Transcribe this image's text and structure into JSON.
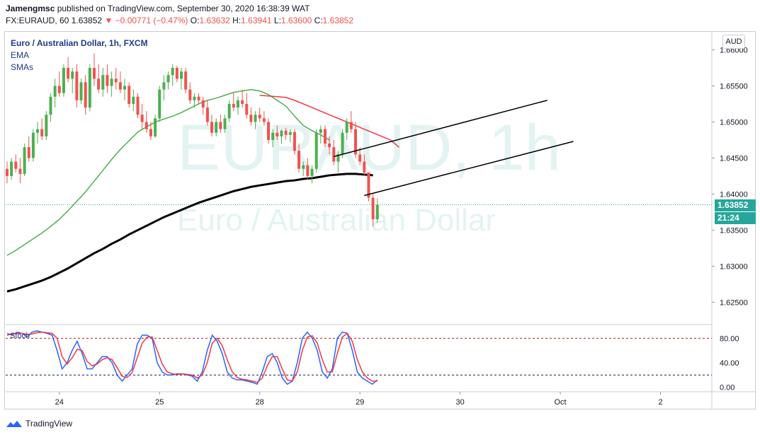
{
  "header": {
    "line1_user": "Jamengmsc",
    "line1_rest": " published on TradingView.com, September 30, 2020 16:38:39 WAT",
    "symbol": "FX:EURAUD, 60",
    "last": "1.63852",
    "change_arrow": "▼",
    "change": "−0.00771 (−0.47%)",
    "o_label": "O:",
    "o_value": "1.63632",
    "h_label": "H:",
    "h_value": "1.63941",
    "l_label": "L:",
    "l_value": "1.63600",
    "c_label": "C:",
    "c_value": "1.63852"
  },
  "legend": {
    "title": "Euro / Australian Dollar, 1h, FXCM",
    "ema": "EMA",
    "smas": "SMAs",
    "stoch": "Stoch"
  },
  "watermark": {
    "symbol": "EURAUD, 1h",
    "name": "Euro / Australian Dollar"
  },
  "currency_button": "AUD",
  "price_badge": "1.63852",
  "countdown_badge": "21:24",
  "footer": {
    "brand": "TradingView"
  },
  "colors": {
    "up": "#26a69a",
    "up_candle": "#4caf50",
    "down": "#ef5350",
    "ema": "#4caf50",
    "sma": "#000000",
    "ma_red": "#f23645",
    "stoch_k": "#2962ff",
    "stoch_d": "#f23645",
    "stoch_band": "#b71c1c",
    "stoch_mid": "#0d1a6e"
  },
  "chart_data": [
    {
      "type": "candlestick",
      "title": "Euro / Australian Dollar, 1h, FXCM",
      "ylim": [
        1.622,
        1.6625
      ],
      "yticks": [
        "1.66000",
        "1.65500",
        "1.65000",
        "1.64500",
        "1.64000",
        "1.63500",
        "1.63000",
        "1.62500"
      ],
      "ytick_values": [
        1.66,
        1.655,
        1.65,
        1.645,
        1.64,
        1.635,
        1.63,
        1.625
      ],
      "xticks": [
        "24",
        "25",
        "28",
        "29",
        "30",
        "Oct",
        "2"
      ],
      "xtick_index": [
        12,
        35,
        58,
        81,
        104,
        127,
        150
      ],
      "candles": [
        [
          1.6435,
          1.6445,
          1.6415,
          1.6425
        ],
        [
          1.6425,
          1.645,
          1.642,
          1.6445
        ],
        [
          1.6445,
          1.6455,
          1.643,
          1.6435
        ],
        [
          1.6435,
          1.645,
          1.6415,
          1.6428
        ],
        [
          1.6428,
          1.647,
          1.6425,
          1.6465
        ],
        [
          1.6465,
          1.648,
          1.6445,
          1.645
        ],
        [
          1.645,
          1.649,
          1.6445,
          1.6485
        ],
        [
          1.6485,
          1.65,
          1.647,
          1.649
        ],
        [
          1.649,
          1.6505,
          1.6475,
          1.648
        ],
        [
          1.648,
          1.6515,
          1.6475,
          1.651
        ],
        [
          1.651,
          1.654,
          1.65,
          1.6535
        ],
        [
          1.6535,
          1.656,
          1.652,
          1.655
        ],
        [
          1.655,
          1.657,
          1.6535,
          1.654
        ],
        [
          1.654,
          1.658,
          1.6535,
          1.6575
        ],
        [
          1.6575,
          1.659,
          1.6555,
          1.656
        ],
        [
          1.656,
          1.6575,
          1.654,
          1.657
        ],
        [
          1.657,
          1.658,
          1.652,
          1.653
        ],
        [
          1.653,
          1.656,
          1.6525,
          1.6555
        ],
        [
          1.6555,
          1.6565,
          1.651,
          1.652
        ],
        [
          1.652,
          1.658,
          1.6515,
          1.6575
        ],
        [
          1.6575,
          1.6595,
          1.655,
          1.656
        ],
        [
          1.656,
          1.658,
          1.654,
          1.6545
        ],
        [
          1.6545,
          1.6575,
          1.6535,
          1.6565
        ],
        [
          1.6565,
          1.658,
          1.654,
          1.655
        ],
        [
          1.655,
          1.657,
          1.6535,
          1.656
        ],
        [
          1.656,
          1.6575,
          1.6545,
          1.6555
        ],
        [
          1.6555,
          1.657,
          1.654,
          1.6545
        ],
        [
          1.6545,
          1.656,
          1.653,
          1.655
        ],
        [
          1.655,
          1.6555,
          1.652,
          1.6525
        ],
        [
          1.6525,
          1.6545,
          1.6515,
          1.6535
        ],
        [
          1.6535,
          1.654,
          1.6505,
          1.651
        ],
        [
          1.651,
          1.6525,
          1.649,
          1.65
        ],
        [
          1.65,
          1.6515,
          1.6485,
          1.649
        ],
        [
          1.649,
          1.65,
          1.6475,
          1.648
        ],
        [
          1.648,
          1.651,
          1.6478,
          1.6505
        ],
        [
          1.6505,
          1.655,
          1.65,
          1.6545
        ],
        [
          1.6545,
          1.6565,
          1.653,
          1.6555
        ],
        [
          1.6555,
          1.657,
          1.6545,
          1.6565
        ],
        [
          1.6565,
          1.658,
          1.655,
          1.6575
        ],
        [
          1.6575,
          1.6578,
          1.6555,
          1.656
        ],
        [
          1.656,
          1.6575,
          1.6545,
          1.657
        ],
        [
          1.657,
          1.6575,
          1.654,
          1.6545
        ],
        [
          1.6545,
          1.6555,
          1.6525,
          1.653
        ],
        [
          1.653,
          1.654,
          1.652,
          1.6535
        ],
        [
          1.6535,
          1.654,
          1.6525,
          1.653
        ],
        [
          1.653,
          1.6535,
          1.651,
          1.652
        ],
        [
          1.652,
          1.653,
          1.6495,
          1.65
        ],
        [
          1.65,
          1.651,
          1.648,
          1.6485
        ],
        [
          1.6485,
          1.6505,
          1.648,
          1.65
        ],
        [
          1.65,
          1.651,
          1.6485,
          1.649
        ],
        [
          1.649,
          1.651,
          1.6485,
          1.6505
        ],
        [
          1.6505,
          1.653,
          1.65,
          1.6525
        ],
        [
          1.6525,
          1.654,
          1.6515,
          1.652
        ],
        [
          1.652,
          1.6535,
          1.651,
          1.653
        ],
        [
          1.653,
          1.6545,
          1.652,
          1.6525
        ],
        [
          1.6525,
          1.654,
          1.6505,
          1.651
        ],
        [
          1.651,
          1.652,
          1.6495,
          1.65
        ],
        [
          1.65,
          1.6515,
          1.649,
          1.651
        ],
        [
          1.651,
          1.652,
          1.65,
          1.6505
        ],
        [
          1.6505,
          1.6515,
          1.6495,
          1.65
        ],
        [
          1.65,
          1.6505,
          1.647,
          1.6475
        ],
        [
          1.6475,
          1.649,
          1.6465,
          1.6485
        ],
        [
          1.6485,
          1.6495,
          1.6475,
          1.648
        ],
        [
          1.648,
          1.649,
          1.647,
          1.6488
        ],
        [
          1.6488,
          1.6492,
          1.6475,
          1.6482
        ],
        [
          1.6482,
          1.649,
          1.6472,
          1.6486
        ],
        [
          1.6486,
          1.649,
          1.6455,
          1.646
        ],
        [
          1.646,
          1.647,
          1.643,
          1.6435
        ],
        [
          1.6435,
          1.6445,
          1.6425,
          1.644
        ],
        [
          1.644,
          1.645,
          1.642,
          1.6425
        ],
        [
          1.6425,
          1.644,
          1.6415,
          1.6435
        ],
        [
          1.6435,
          1.649,
          1.643,
          1.6485
        ],
        [
          1.6485,
          1.6495,
          1.647,
          1.649
        ],
        [
          1.649,
          1.6495,
          1.6465,
          1.647
        ],
        [
          1.647,
          1.648,
          1.6455,
          1.6465
        ],
        [
          1.6465,
          1.6475,
          1.644,
          1.6445
        ],
        [
          1.6445,
          1.646,
          1.643,
          1.6455
        ],
        [
          1.6455,
          1.649,
          1.645,
          1.6485
        ],
        [
          1.6485,
          1.6505,
          1.6475,
          1.65
        ],
        [
          1.65,
          1.6515,
          1.6485,
          1.649
        ],
        [
          1.649,
          1.65,
          1.645,
          1.6455
        ],
        [
          1.6455,
          1.6465,
          1.644,
          1.6445
        ],
        [
          1.6445,
          1.6455,
          1.6425,
          1.643
        ],
        [
          1.643,
          1.643,
          1.639,
          1.6395
        ],
        [
          1.6395,
          1.64,
          1.6355,
          1.6365
        ],
        [
          1.6365,
          1.6394,
          1.636,
          1.6385
        ]
      ],
      "ema_values": [
        1.6315,
        1.6322,
        1.633,
        1.6338,
        1.6346,
        1.6355,
        1.6365,
        1.6377,
        1.639,
        1.6403,
        1.6418,
        1.6433,
        1.6448,
        1.6462,
        1.6474,
        1.6486,
        1.6493,
        1.65,
        1.6504,
        1.6508,
        1.6513,
        1.6519,
        1.6525,
        1.653,
        1.6533,
        1.6537,
        1.6541,
        1.6543,
        1.6545,
        1.6543,
        1.6538,
        1.653,
        1.6522,
        1.6508,
        1.6495,
        1.6488,
        1.6482,
        1.6475
      ],
      "sma_values": [
        1.6265,
        1.6268,
        1.6272,
        1.6276,
        1.628,
        1.6285,
        1.6291,
        1.6297,
        1.6304,
        1.6311,
        1.6318,
        1.6324,
        1.6331,
        1.6337,
        1.6344,
        1.635,
        1.6356,
        1.6362,
        1.6368,
        1.6373,
        1.6378,
        1.6383,
        1.6388,
        1.6392,
        1.6396,
        1.64,
        1.6404,
        1.6407,
        1.641,
        1.6412,
        1.6414,
        1.6416,
        1.6418,
        1.6419,
        1.6421,
        1.6422,
        1.6424,
        1.6426,
        1.6427,
        1.6428,
        1.6428,
        1.6427,
        1.6426
      ],
      "ma_red_values": [
        1.6537,
        1.6536,
        1.6535,
        1.6534,
        1.653,
        1.6525,
        1.652,
        1.6515,
        1.651,
        1.6505,
        1.65,
        1.6495,
        1.649,
        1.6485,
        1.648,
        1.6475,
        1.6465
      ],
      "trendlines": [
        {
          "from": [
            1.6452,
            1.6452
          ],
          "to": [
            1.653,
            1.653
          ]
        },
        {
          "from": [
            1.6398,
            1.6398
          ],
          "to": [
            1.6473,
            1.6473
          ]
        }
      ],
      "last_price": 1.63852
    },
    {
      "type": "line",
      "title": "Stoch",
      "ylim": [
        -5,
        100
      ],
      "yticks": [
        "80.00",
        "40.00",
        "0.00"
      ],
      "ytick_values": [
        80,
        40,
        0
      ],
      "bands": [
        80,
        20
      ],
      "series": [
        {
          "values": [
            88,
            85,
            90,
            88,
            82,
            90,
            92,
            90,
            88,
            85,
            60,
            30,
            40,
            60,
            75,
            55,
            30,
            30,
            40,
            50,
            50,
            40,
            20,
            10,
            20,
            30,
            70,
            85,
            85,
            80,
            40,
            25,
            20,
            20,
            22,
            22,
            20,
            18,
            10,
            25,
            60,
            85,
            75,
            55,
            25,
            15,
            12,
            12,
            10,
            8,
            5,
            25,
            50,
            55,
            40,
            15,
            5,
            10,
            40,
            80,
            90,
            80,
            60,
            25,
            15,
            30,
            80,
            90,
            88,
            60,
            25,
            15,
            10,
            5,
            12
          ]
        },
        {
          "values": [
            85,
            87,
            88,
            88,
            86,
            87,
            89,
            90,
            89,
            88,
            80,
            50,
            38,
            48,
            62,
            60,
            42,
            35,
            38,
            45,
            48,
            45,
            32,
            18,
            16,
            24,
            48,
            72,
            82,
            82,
            60,
            38,
            25,
            22,
            21,
            22,
            21,
            20,
            15,
            20,
            40,
            72,
            80,
            68,
            45,
            25,
            16,
            13,
            12,
            10,
            8,
            15,
            35,
            50,
            50,
            30,
            12,
            10,
            25,
            60,
            82,
            84,
            72,
            45,
            25,
            25,
            55,
            82,
            88,
            75,
            45,
            25,
            15,
            10,
            10
          ]
        }
      ]
    }
  ]
}
